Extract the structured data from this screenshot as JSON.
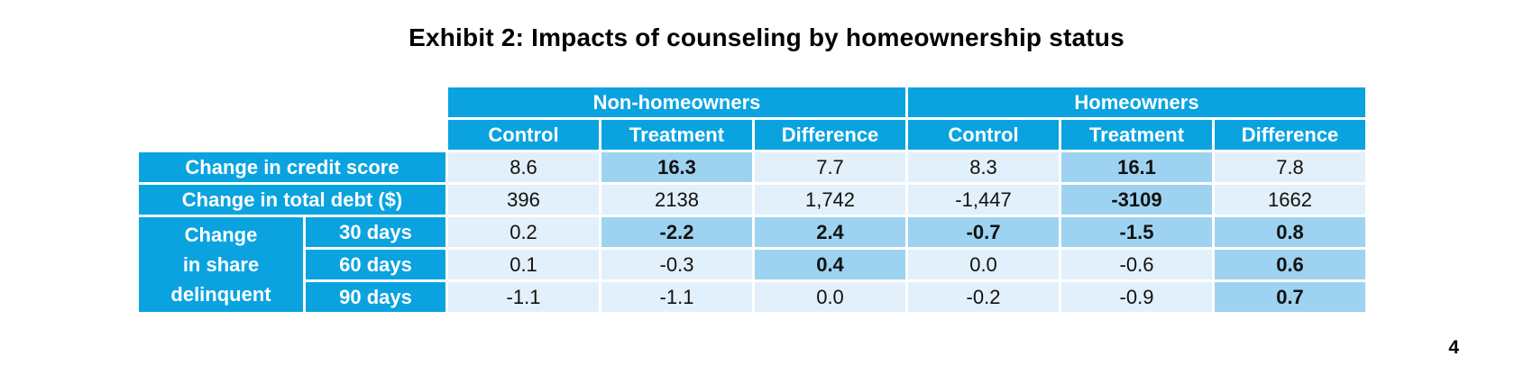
{
  "title": "Exhibit 2: Impacts of counseling by homeownership status",
  "page_number": "4",
  "groups": [
    {
      "label": "Non-homeowners"
    },
    {
      "label": "Homeowners"
    }
  ],
  "columns": [
    "Control",
    "Treatment",
    "Difference",
    "Control",
    "Treatment",
    "Difference"
  ],
  "rows": {
    "credit_score": {
      "label": "Change in credit score",
      "values": [
        "8.6",
        "16.3",
        "7.7",
        "8.3",
        "16.1",
        "7.8"
      ]
    },
    "total_debt": {
      "label": "Change in total debt ($)",
      "values": [
        "396",
        "2138",
        "1,742",
        "-1,447",
        "-3109",
        "1662"
      ]
    },
    "delinquent": {
      "label_lines": [
        "Change",
        "in share",
        "delinquent"
      ],
      "sub_rows": [
        {
          "label": "30 days",
          "values": [
            "0.2",
            "-2.2",
            "2.4",
            "-0.7",
            "-1.5",
            "0.8"
          ]
        },
        {
          "label": "60 days",
          "values": [
            "0.1",
            "-0.3",
            "0.4",
            "0.0",
            "-0.6",
            "0.6"
          ]
        },
        {
          "label": "90 days",
          "values": [
            "-1.1",
            "-1.1",
            "0.0",
            "-0.2",
            "-0.9",
            "0.7"
          ]
        }
      ]
    }
  },
  "colors": {
    "header_blue": "#0aa3e0",
    "cell_light": "#e1f0fb",
    "cell_highlight": "#9dd3f1"
  }
}
